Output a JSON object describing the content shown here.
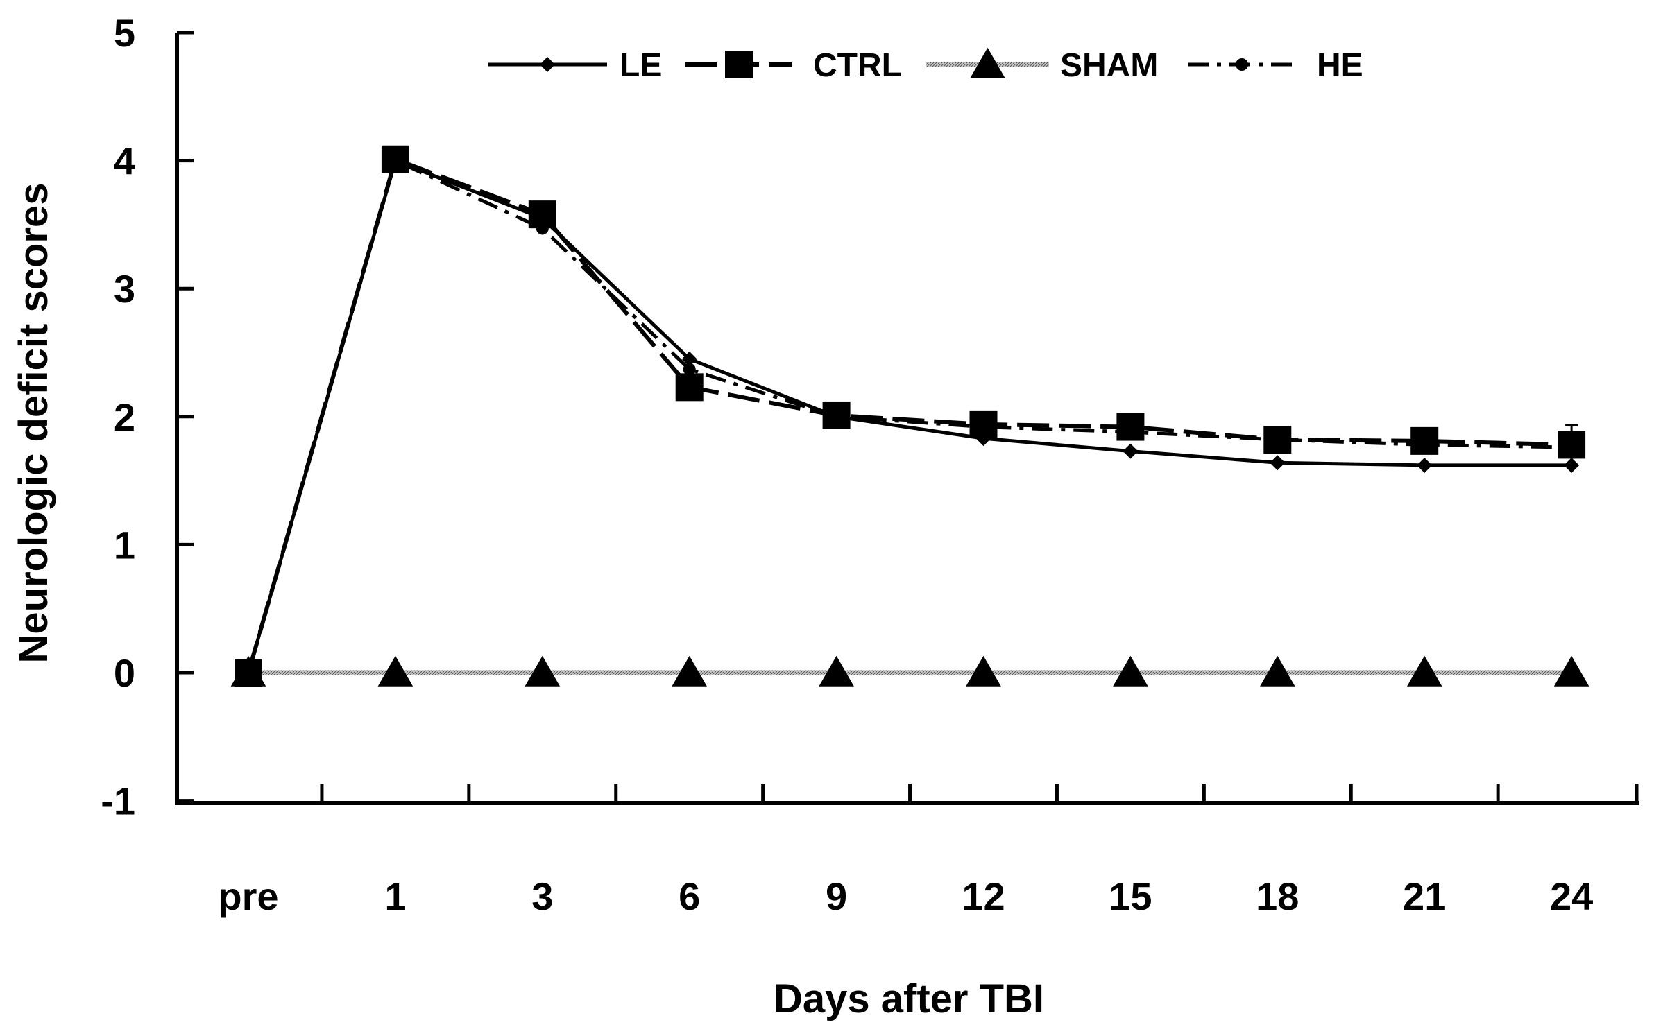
{
  "chart_data": {
    "type": "line",
    "title": "",
    "xlabel": "Days after TBI",
    "ylabel": "Neurologic deficit scores",
    "categories": [
      "pre",
      "1",
      "3",
      "6",
      "9",
      "12",
      "15",
      "18",
      "21",
      "24"
    ],
    "yticks": [
      "-1",
      "0",
      "1",
      "2",
      "3",
      "4",
      "5"
    ],
    "ylim": [
      -1,
      5
    ],
    "grid": false,
    "legend_position": "top",
    "series": [
      {
        "name": "LE",
        "values": [
          0,
          4.0,
          3.55,
          2.45,
          2.0,
          1.83,
          1.73,
          1.64,
          1.62,
          1.62
        ],
        "color": "#000000",
        "line_style": "solid",
        "marker": "diamond"
      },
      {
        "name": "CTRL",
        "values": [
          0,
          4.01,
          3.58,
          2.23,
          2.01,
          1.94,
          1.92,
          1.82,
          1.81,
          1.78
        ],
        "color": "#000000",
        "line_style": "long-dash",
        "marker": "square"
      },
      {
        "name": "SHAM",
        "values": [
          0,
          0,
          0,
          0,
          0,
          0,
          0,
          0,
          0,
          0
        ],
        "color": "#9a9a9a",
        "line_style": "hatched",
        "marker": "triangle"
      },
      {
        "name": "HE",
        "values": [
          0,
          4.0,
          3.47,
          2.37,
          2.0,
          1.92,
          1.88,
          1.82,
          1.78,
          1.76
        ],
        "color": "#000000",
        "line_style": "dash-dot",
        "marker": "circle"
      }
    ]
  }
}
